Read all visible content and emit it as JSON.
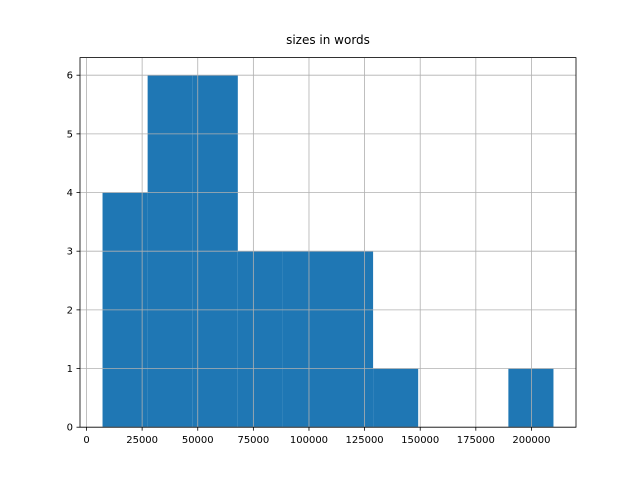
{
  "chart_data": {
    "type": "histogram",
    "title": "sizes in words",
    "bins": [
      7200,
      27470,
      47740,
      68010,
      88280,
      108550,
      128820,
      149090,
      169360,
      189630,
      209900
    ],
    "values": [
      4,
      6,
      6,
      3,
      3,
      3,
      1,
      0,
      0,
      1
    ],
    "color": "#1f77b4",
    "xlim": [
      -2930,
      220030
    ],
    "xticks": [
      0,
      25000,
      50000,
      75000,
      100000,
      125000,
      150000,
      175000,
      200000
    ],
    "ylim": [
      0,
      6.3
    ],
    "yticks": [
      0,
      1,
      2,
      3,
      4,
      5,
      6
    ],
    "grid": true
  }
}
